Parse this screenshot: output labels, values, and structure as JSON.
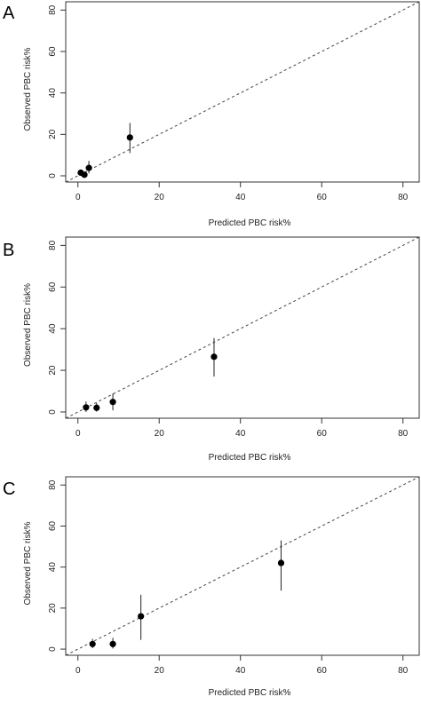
{
  "chart_data": [
    {
      "panel_label": "A",
      "type": "scatter",
      "xlabel": "Predicted PBC risk%",
      "ylabel": "Observed PBC risk%",
      "xlim": [
        -3,
        84
      ],
      "ylim": [
        -3,
        84
      ],
      "xticks": [
        0,
        20,
        40,
        60,
        80
      ],
      "yticks": [
        0,
        20,
        40,
        60,
        80
      ],
      "reference_line": "dashed y = x",
      "points": [
        {
          "x": 0.7,
          "y": 1.5,
          "lo": 0.8,
          "hi": 2.3
        },
        {
          "x": 1.6,
          "y": 0.5,
          "lo": 0.0,
          "hi": 1.2
        },
        {
          "x": 2.7,
          "y": 3.8,
          "lo": 1.2,
          "hi": 7.2
        },
        {
          "x": 12.8,
          "y": 18.5,
          "lo": 11.0,
          "hi": 25.5
        }
      ]
    },
    {
      "panel_label": "B",
      "type": "scatter",
      "xlabel": "Predicted PBC risk%",
      "ylabel": "Observed PBC risk%",
      "xlim": [
        -3,
        84
      ],
      "ylim": [
        -3,
        84
      ],
      "xticks": [
        0,
        20,
        40,
        60,
        80
      ],
      "yticks": [
        0,
        20,
        40,
        60,
        80
      ],
      "reference_line": "dashed y = x",
      "points": [
        {
          "x": 2.0,
          "y": 2.2,
          "lo": 0.0,
          "hi": 5.0
        },
        {
          "x": 4.6,
          "y": 2.0,
          "lo": 0.2,
          "hi": 4.3
        },
        {
          "x": 8.6,
          "y": 4.8,
          "lo": 0.8,
          "hi": 8.8
        },
        {
          "x": 33.5,
          "y": 26.5,
          "lo": 17.0,
          "hi": 35.5
        }
      ]
    },
    {
      "panel_label": "C",
      "type": "scatter",
      "xlabel": "Predicted PBC risk%",
      "ylabel": "Observed PBC risk%",
      "xlim": [
        -3,
        84
      ],
      "ylim": [
        -3,
        84
      ],
      "xticks": [
        0,
        20,
        40,
        60,
        80
      ],
      "yticks": [
        0,
        20,
        40,
        60,
        80
      ],
      "reference_line": "dashed y = x",
      "points": [
        {
          "x": 3.6,
          "y": 2.5,
          "lo": 0.5,
          "hi": 5.0
        },
        {
          "x": 8.6,
          "y": 2.5,
          "lo": 0.3,
          "hi": 5.5
        },
        {
          "x": 15.5,
          "y": 16.0,
          "lo": 4.5,
          "hi": 26.5
        },
        {
          "x": 50.0,
          "y": 42.0,
          "lo": 28.5,
          "hi": 53.0
        }
      ]
    }
  ]
}
